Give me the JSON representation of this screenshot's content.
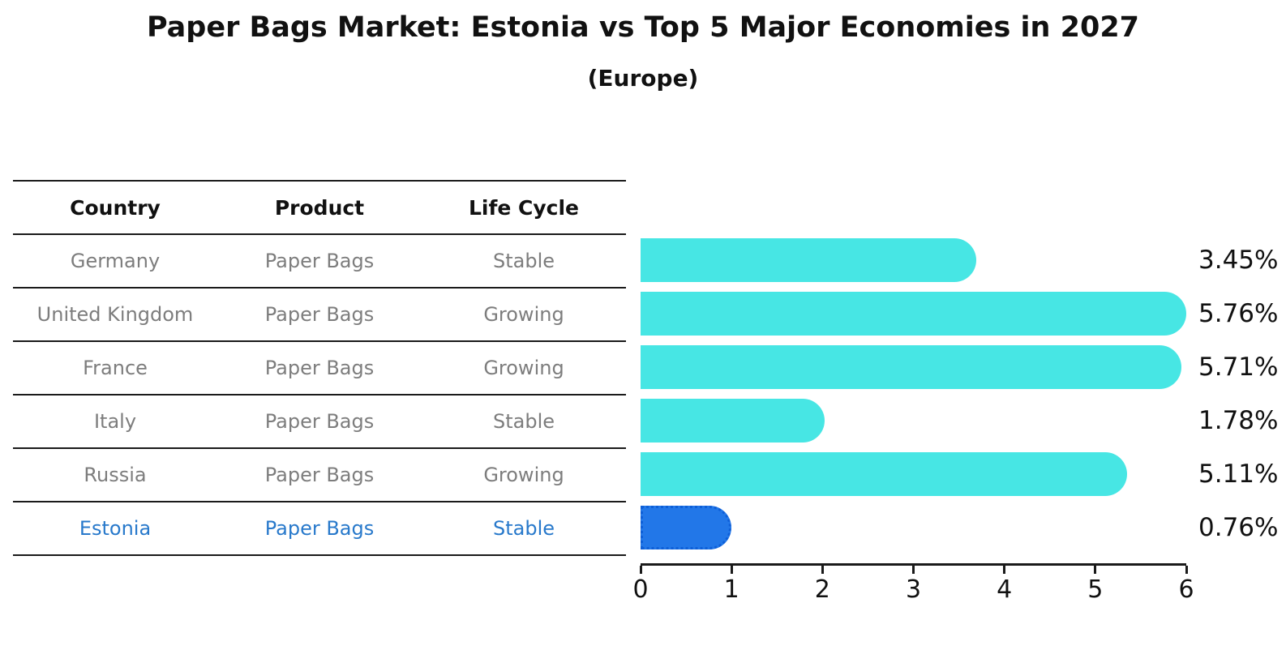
{
  "title": "Paper Bags Market: Estonia vs Top 5 Major Economies in 2027",
  "subtitle": "(Europe)",
  "table": {
    "headers": [
      "Country",
      "Product",
      "Life Cycle"
    ],
    "rows": [
      {
        "country": "Germany",
        "product": "Paper Bags",
        "life_cycle": "Stable",
        "value_label": "3.45%"
      },
      {
        "country": "United Kingdom",
        "product": "Paper Bags",
        "life_cycle": "Growing",
        "value_label": "5.76%"
      },
      {
        "country": "France",
        "product": "Paper Bags",
        "life_cycle": "Growing",
        "value_label": "5.71%"
      },
      {
        "country": "Italy",
        "product": "Paper Bags",
        "life_cycle": "Stable",
        "value_label": "1.78%"
      },
      {
        "country": "Russia",
        "product": "Paper Bags",
        "life_cycle": "Growing",
        "value_label": "5.11%"
      },
      {
        "country": "Estonia",
        "product": "Paper Bags",
        "life_cycle": "Stable",
        "value_label": "0.76%"
      }
    ]
  },
  "chart_data": {
    "type": "bar",
    "orientation": "horizontal",
    "title": "Paper Bags Market: Estonia vs Top 5 Major Economies in 2027",
    "subtitle": "(Europe)",
    "categories": [
      "Germany",
      "United Kingdom",
      "France",
      "Italy",
      "Russia",
      "Estonia"
    ],
    "values": [
      3.45,
      5.76,
      5.71,
      1.78,
      5.11,
      0.76
    ],
    "value_labels": [
      "3.45%",
      "5.76%",
      "5.71%",
      "1.78%",
      "5.11%",
      "0.76%"
    ],
    "unit": "%",
    "xlim": [
      0,
      6
    ],
    "x_ticks": [
      "0",
      "1",
      "2",
      "3",
      "4",
      "5",
      "6"
    ],
    "grid": false,
    "legend_position": "none",
    "bar_color": "#47E6E4",
    "highlight_color": "#2277E8",
    "highlight_border_color": "#0E5FD8",
    "highlight_index": 5
  },
  "colors": {
    "row_text": "#7d7d7d",
    "highlight_text": "#2879CB",
    "header_text": "#111111",
    "table_line": "#1a1a1a",
    "value_label_text": "#111111"
  }
}
